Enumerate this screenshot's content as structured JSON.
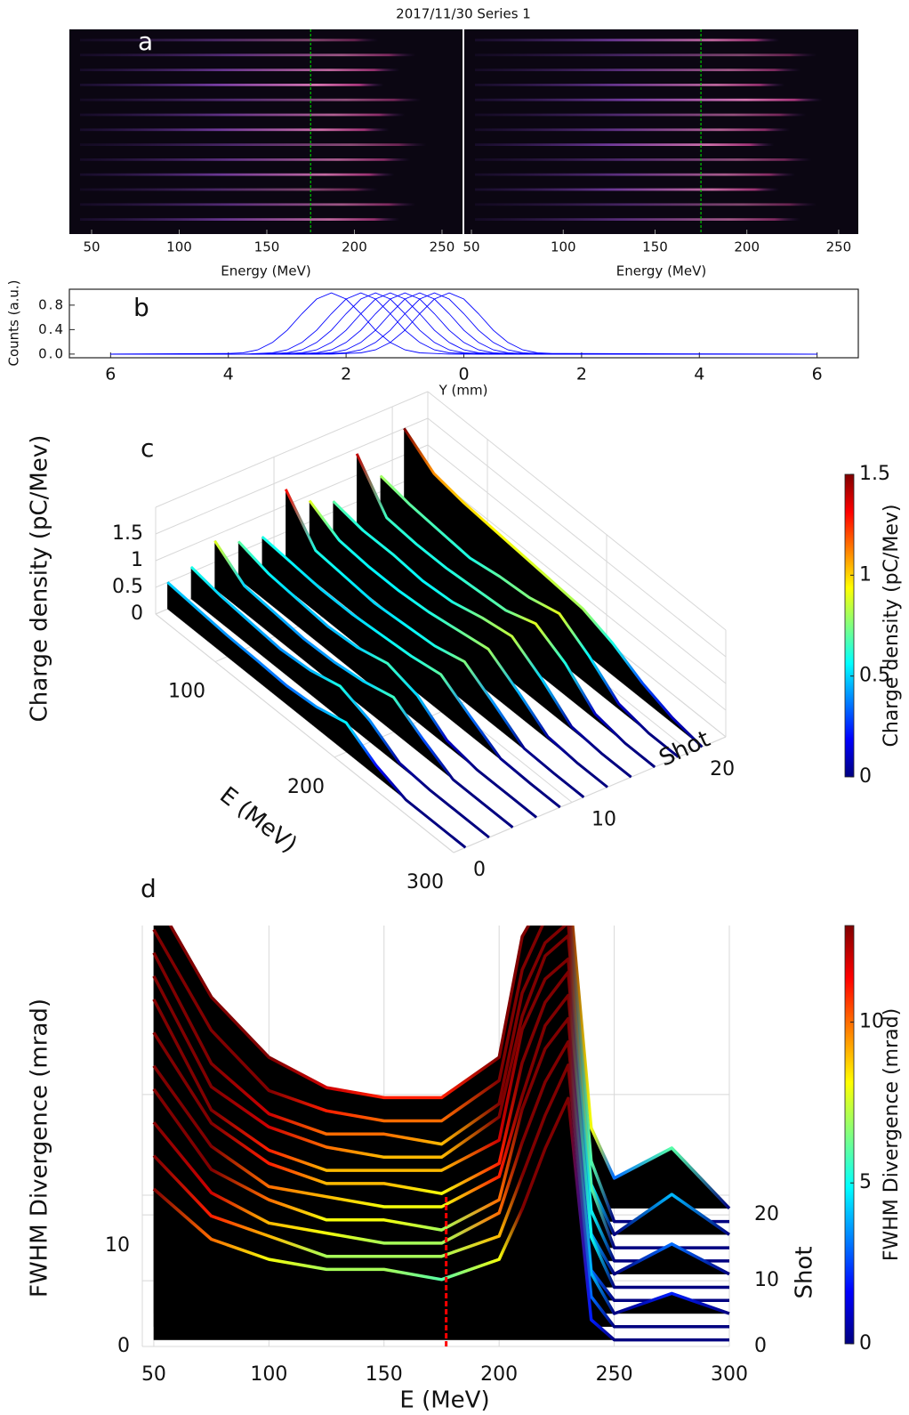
{
  "chart_data": [
    {
      "type": "image-pair",
      "title": "2017/11/30 Series 1",
      "panel_label": "a",
      "marker_color": "#00c800",
      "images": [
        {
          "xlabel": "Energy (MeV)",
          "xlim": [
            37.3,
            261.7
          ],
          "xticks": [
            50,
            100,
            150,
            200,
            250
          ],
          "marker": 175
        },
        {
          "xlabel": "Energy (MeV)",
          "xlim": [
            46.1,
            260.7
          ],
          "xticks": [
            50,
            100,
            150,
            200,
            250
          ],
          "marker": 175
        }
      ]
    },
    {
      "type": "line",
      "panel_label": "b",
      "xlabel": "Y (mm)",
      "ylabel": "Counts (a.u.)",
      "color": "#0000ff",
      "xlim": [
        -6.7,
        6.7
      ],
      "xticks": [
        {
          "value": -6,
          "label": "6"
        },
        {
          "value": -4,
          "label": "4"
        },
        {
          "value": -2,
          "label": "2"
        },
        0,
        2,
        4,
        6
      ],
      "ylim": [
        -0.06,
        1.06
      ],
      "yticks": [
        {
          "value": 0,
          "label": "0.0"
        },
        0.4,
        0.8
      ],
      "x": [
        -6,
        -4,
        -3.75,
        -3.5,
        -3.25,
        -3,
        -2.75,
        -2.5,
        -2.25,
        -2,
        -1.75,
        -1.5,
        -1.25,
        -1,
        -0.75,
        -0.5,
        -0.25,
        0,
        0.25,
        0.5,
        0.75,
        1,
        1.25,
        1.5,
        6
      ],
      "series": [
        {
          "values": [
            0,
            0.01,
            0.02,
            0.07,
            0.19,
            0.39,
            0.66,
            0.9,
            1,
            0.9,
            0.66,
            0.39,
            0.19,
            0.07,
            0.02,
            0.01,
            0,
            0,
            0,
            0,
            0,
            0,
            0,
            0,
            0
          ]
        },
        {
          "values": [
            0,
            0,
            0,
            0.01,
            0.02,
            0.07,
            0.19,
            0.39,
            0.66,
            0.9,
            1,
            0.9,
            0.66,
            0.39,
            0.19,
            0.07,
            0.02,
            0.01,
            0,
            0,
            0,
            0,
            0,
            0,
            0
          ]
        },
        {
          "values": [
            0,
            0,
            0,
            0,
            0.01,
            0.02,
            0.07,
            0.19,
            0.39,
            0.66,
            0.9,
            1,
            0.9,
            0.66,
            0.39,
            0.19,
            0.07,
            0.02,
            0.01,
            0,
            0,
            0,
            0,
            0,
            0
          ]
        },
        {
          "values": [
            0,
            0,
            0,
            0,
            0,
            0.01,
            0.02,
            0.07,
            0.19,
            0.39,
            0.66,
            0.9,
            1,
            0.9,
            0.66,
            0.39,
            0.19,
            0.07,
            0.02,
            0.01,
            0,
            0,
            0,
            0,
            0
          ]
        },
        {
          "values": [
            0,
            0,
            0,
            0,
            0,
            0,
            0.01,
            0.02,
            0.07,
            0.19,
            0.39,
            0.66,
            0.9,
            1,
            0.9,
            0.66,
            0.39,
            0.19,
            0.07,
            0.02,
            0.01,
            0,
            0,
            0,
            0
          ]
        },
        {
          "values": [
            0,
            0,
            0,
            0,
            0,
            0,
            0,
            0.01,
            0.02,
            0.07,
            0.19,
            0.39,
            0.66,
            0.9,
            1,
            0.9,
            0.66,
            0.39,
            0.19,
            0.07,
            0.02,
            0.01,
            0,
            0,
            0
          ]
        },
        {
          "values": [
            0,
            0,
            0,
            0,
            0,
            0,
            0,
            0,
            0.01,
            0.02,
            0.07,
            0.19,
            0.39,
            0.66,
            0.9,
            1,
            0.9,
            0.66,
            0.39,
            0.19,
            0.07,
            0.02,
            0.01,
            0,
            0
          ]
        },
        {
          "values": [
            0,
            0,
            0,
            0,
            0,
            0,
            0,
            0,
            0,
            0.01,
            0.02,
            0.07,
            0.19,
            0.39,
            0.66,
            0.9,
            1,
            0.9,
            0.66,
            0.39,
            0.19,
            0.07,
            0.02,
            0.01,
            0
          ]
        }
      ]
    },
    {
      "type": "waterfall3d",
      "panel_label": "c",
      "xlabel": "E (MeV)",
      "ylabel": "Shot",
      "zlabel": "Charge density (pC/Mev)",
      "xlim": [
        50,
        300
      ],
      "xticks": [
        100,
        200,
        300
      ],
      "ylim": [
        0,
        23
      ],
      "yticks": [
        0,
        10,
        20
      ],
      "zlim": [
        0,
        2
      ],
      "zticks": [
        0,
        0.5,
        1,
        1.5
      ],
      "colormap": "jet",
      "clim": [
        0,
        1.5
      ],
      "colorbar_ticks": [
        0,
        0.5,
        1,
        1.5
      ],
      "colorbar_label": "Charge density (pC/Mev)",
      "x": [
        50,
        75,
        100,
        125,
        150,
        175,
        200,
        225,
        250,
        275,
        300
      ],
      "series": [
        {
          "shot": 1,
          "values": [
            0.5,
            0.45,
            0.4,
            0.38,
            0.35,
            0.4,
            0.55,
            0.2,
            0,
            0,
            0
          ]
        },
        {
          "shot": 3,
          "values": [
            0.6,
            0.5,
            0.45,
            0.4,
            0.45,
            0.6,
            0.4,
            0.05,
            0,
            0,
            0
          ]
        },
        {
          "shot": 5,
          "values": [
            0.9,
            0.5,
            0.45,
            0.4,
            0.42,
            0.5,
            0.65,
            0.3,
            0,
            0,
            0
          ]
        },
        {
          "shot": 7,
          "values": [
            0.7,
            0.55,
            0.5,
            0.45,
            0.5,
            0.65,
            0.5,
            0.1,
            0,
            0,
            0
          ]
        },
        {
          "shot": 9,
          "values": [
            0.6,
            0.55,
            0.5,
            0.5,
            0.55,
            0.6,
            0.7,
            0.35,
            0.02,
            0,
            0
          ]
        },
        {
          "shot": 11,
          "values": [
            1.3,
            0.6,
            0.55,
            0.5,
            0.55,
            0.6,
            0.75,
            0.4,
            0.02,
            0,
            0
          ]
        },
        {
          "shot": 13,
          "values": [
            0.9,
            0.6,
            0.55,
            0.55,
            0.6,
            0.7,
            0.8,
            0.45,
            0.05,
            0,
            0
          ]
        },
        {
          "shot": 15,
          "values": [
            0.7,
            0.6,
            0.6,
            0.55,
            0.6,
            0.75,
            0.85,
            0.5,
            0.05,
            0,
            0
          ]
        },
        {
          "shot": 17,
          "values": [
            1.4,
            0.65,
            0.6,
            0.6,
            0.65,
            0.7,
            0.9,
            0.6,
            0.1,
            0,
            0
          ]
        },
        {
          "shot": 19,
          "values": [
            0.8,
            0.7,
            0.65,
            0.6,
            0.7,
            0.75,
            0.9,
            0.55,
            0.1,
            0,
            0
          ]
        },
        {
          "shot": 21,
          "values": [
            1.5,
            1.1,
            1.0,
            0.95,
            0.9,
            0.85,
            0.8,
            0.6,
            0.3,
            0.1,
            0
          ]
        }
      ]
    },
    {
      "type": "waterfall3d",
      "panel_label": "d",
      "xlabel": "E (MeV)",
      "ylabel": "Shot",
      "zlabel": "FWHM Divergence (mrad)",
      "xlim": [
        45,
        300
      ],
      "xticks": [
        50,
        100,
        150,
        200,
        250,
        300
      ],
      "ylim": [
        0,
        23
      ],
      "yticks": [
        0,
        10,
        20
      ],
      "zlim": [
        0,
        42
      ],
      "zticks": [
        0,
        10
      ],
      "colormap": "jet",
      "clim": [
        0,
        13
      ],
      "colorbar_ticks": [
        0,
        5,
        10
      ],
      "colorbar_label": "FWHM Divergence (mrad)",
      "marker": 177,
      "marker_color": "#ff0000",
      "x": [
        50,
        75,
        100,
        125,
        150,
        175,
        200,
        210,
        220,
        230,
        240,
        250,
        275,
        300
      ],
      "series": [
        {
          "shot": 1,
          "values": [
            15,
            10,
            8,
            7,
            7,
            6,
            8,
            13,
            19,
            24,
            2,
            0,
            0,
            0
          ]
        },
        {
          "shot": 3,
          "values": [
            17,
            11,
            9,
            7,
            7,
            7,
            9,
            15,
            21,
            26,
            3,
            0,
            0,
            0
          ]
        },
        {
          "shot": 5,
          "values": [
            19,
            12,
            9,
            8,
            7,
            7,
            10,
            17,
            23,
            27,
            4,
            0,
            2,
            0
          ]
        },
        {
          "shot": 7,
          "values": [
            21,
            13,
            10,
            8,
            8,
            7,
            10,
            19,
            25,
            28,
            3,
            0,
            0,
            0
          ]
        },
        {
          "shot": 9,
          "values": [
            22,
            14,
            10,
            9,
            8,
            8,
            11,
            19,
            26,
            29,
            5,
            0,
            0,
            0
          ]
        },
        {
          "shot": 11,
          "values": [
            24,
            15,
            11,
            9,
            9,
            8,
            11,
            21,
            27,
            30,
            4,
            0,
            3,
            0
          ]
        },
        {
          "shot": 13,
          "values": [
            26,
            15,
            11,
            9,
            9,
            9,
            12,
            23,
            28,
            30,
            5,
            0,
            0,
            0
          ]
        },
        {
          "shot": 15,
          "values": [
            27,
            16,
            12,
            10,
            9,
            9,
            13,
            23,
            29,
            31,
            6,
            0,
            0,
            0
          ]
        },
        {
          "shot": 17,
          "values": [
            28,
            17,
            12,
            10,
            10,
            9,
            13,
            24,
            29,
            31,
            5,
            0,
            4,
            0
          ]
        },
        {
          "shot": 19,
          "values": [
            29,
            19,
            13,
            11,
            10,
            10,
            14,
            25,
            30,
            32,
            6,
            0,
            0,
            0
          ]
        },
        {
          "shot": 21,
          "values": [
            31,
            21,
            15,
            12,
            11,
            11,
            15,
            27,
            31,
            33,
            8,
            3,
            6,
            0
          ]
        }
      ]
    }
  ]
}
